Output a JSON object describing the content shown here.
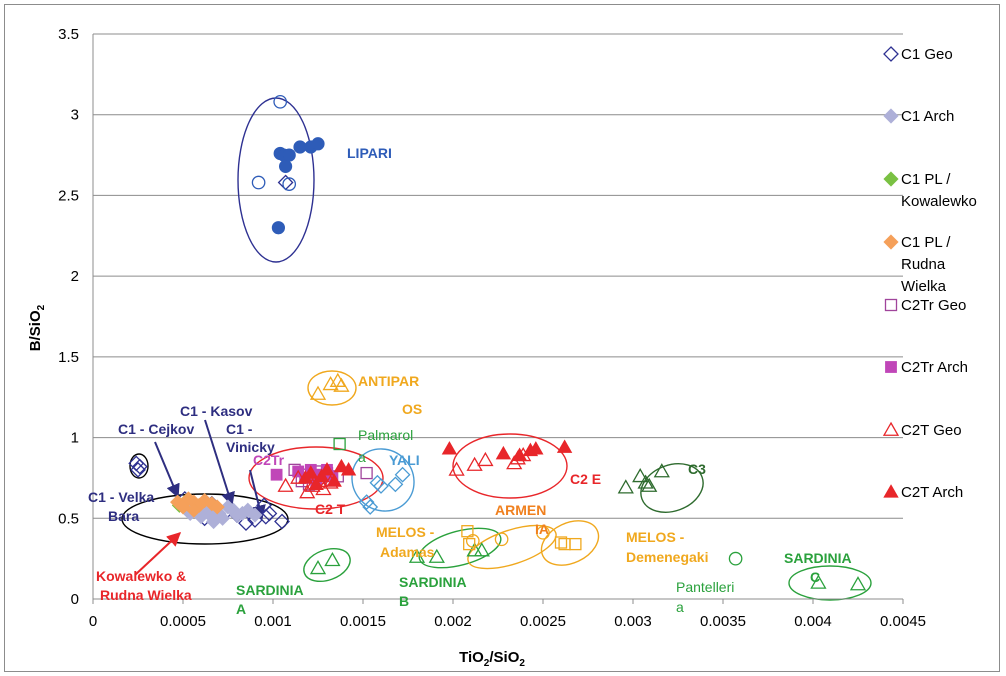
{
  "chart_data": {
    "type": "scatter",
    "xlabel": "TiO2/SiO2",
    "ylabel": "B/SiO2",
    "xlim": [
      0,
      0.0045
    ],
    "ylim": [
      0,
      3.5
    ],
    "x_ticks": [
      "0",
      "0.0005",
      "0.001",
      "0.0015",
      "0.002",
      "0.0025",
      "0.003",
      "0.0035",
      "0.004",
      "0.0045"
    ],
    "y_ticks": [
      "0",
      "0.5",
      "1",
      "1.5",
      "2",
      "2.5",
      "3",
      "3.5"
    ],
    "grid": "horizontal",
    "legend_position": "right",
    "series": [
      {
        "name": "C1 Geo",
        "marker": "diamond-open",
        "color": "#2e3192",
        "points": [
          [
            0.00024,
            0.84
          ],
          [
            0.00026,
            0.82
          ],
          [
            0.00025,
            0.8
          ],
          [
            0.00051,
            0.62
          ],
          [
            0.00058,
            0.56
          ],
          [
            0.00066,
            0.59
          ],
          [
            0.00073,
            0.53
          ],
          [
            0.0008,
            0.52
          ],
          [
            0.00085,
            0.47
          ],
          [
            0.0009,
            0.49
          ],
          [
            0.00096,
            0.51
          ],
          [
            0.00098,
            0.53
          ],
          [
            0.00105,
            0.48
          ],
          [
            0.00107,
            2.58
          ],
          [
            0.00095,
            0.58
          ],
          [
            0.00062,
            0.5
          ]
        ]
      },
      {
        "name": "C1 Arch",
        "marker": "diamond",
        "color": "#aeb0d8",
        "points": [
          [
            0.00052,
            0.58
          ],
          [
            0.00054,
            0.53
          ],
          [
            0.00057,
            0.55
          ],
          [
            0.0006,
            0.51
          ],
          [
            0.00062,
            0.57
          ],
          [
            0.00065,
            0.52
          ],
          [
            0.00068,
            0.56
          ],
          [
            0.0007,
            0.53
          ],
          [
            0.00072,
            0.5
          ],
          [
            0.00075,
            0.57
          ],
          [
            0.00078,
            0.55
          ],
          [
            0.0008,
            0.52
          ],
          [
            0.00083,
            0.53
          ],
          [
            0.00086,
            0.55
          ],
          [
            0.0009,
            0.52
          ],
          [
            0.00067,
            0.48
          ],
          [
            0.00063,
            0.6
          ]
        ]
      },
      {
        "name": "C1 PL / Kowalewko",
        "marker": "diamond",
        "color": "#7ac143",
        "points": [
          [
            0.00048,
            0.58
          ],
          [
            0.00052,
            0.61
          ]
        ]
      },
      {
        "name": "C1 PL / Rudna Wielka",
        "marker": "diamond",
        "color": "#f5a05a",
        "points": [
          [
            0.00047,
            0.6
          ],
          [
            0.0005,
            0.57
          ],
          [
            0.00053,
            0.62
          ],
          [
            0.00056,
            0.6
          ],
          [
            0.00059,
            0.58
          ],
          [
            0.00062,
            0.61
          ],
          [
            0.00066,
            0.59
          ],
          [
            0.00069,
            0.57
          ],
          [
            0.00056,
            0.55
          ]
        ]
      },
      {
        "name": "C2Tr Geo",
        "marker": "square-open",
        "color": "#a0449b",
        "points": [
          [
            0.00112,
            0.8
          ],
          [
            0.00116,
            0.73
          ],
          [
            0.00118,
            0.77
          ],
          [
            0.0012,
            0.71
          ],
          [
            0.00124,
            0.79
          ],
          [
            0.00126,
            0.75
          ],
          [
            0.0013,
            0.78
          ],
          [
            0.00132,
            0.74
          ],
          [
            0.00136,
            0.76
          ],
          [
            0.00152,
            0.78
          ]
        ]
      },
      {
        "name": "C2Tr Arch",
        "marker": "square",
        "color": "#c046b8",
        "points": [
          [
            0.00102,
            0.77
          ],
          [
            0.00114,
            0.79
          ],
          [
            0.00118,
            0.75
          ],
          [
            0.00121,
            0.8
          ],
          [
            0.00124,
            0.72
          ],
          [
            0.00127,
            0.77
          ],
          [
            0.0013,
            0.8
          ],
          [
            0.00133,
            0.76
          ]
        ]
      },
      {
        "name": "C2T Geo",
        "marker": "triangle-open",
        "color": "#e8262a",
        "points": [
          [
            0.00107,
            0.7
          ],
          [
            0.00114,
            0.75
          ],
          [
            0.00119,
            0.66
          ],
          [
            0.00122,
            0.7
          ],
          [
            0.00126,
            0.73
          ],
          [
            0.00128,
            0.68
          ],
          [
            0.00132,
            0.72
          ],
          [
            0.00202,
            0.8
          ],
          [
            0.00212,
            0.83
          ],
          [
            0.00218,
            0.86
          ],
          [
            0.00234,
            0.84
          ],
          [
            0.00236,
            0.87
          ],
          [
            0.00239,
            0.89
          ]
        ]
      },
      {
        "name": "C2T Arch",
        "marker": "triangle",
        "color": "#e8262a",
        "points": [
          [
            0.00118,
            0.75
          ],
          [
            0.00121,
            0.78
          ],
          [
            0.00124,
            0.71
          ],
          [
            0.00127,
            0.76
          ],
          [
            0.0013,
            0.8
          ],
          [
            0.00134,
            0.73
          ],
          [
            0.00138,
            0.82
          ],
          [
            0.00142,
            0.8
          ],
          [
            0.00198,
            0.93
          ],
          [
            0.00228,
            0.9
          ],
          [
            0.00237,
            0.89
          ],
          [
            0.00243,
            0.92
          ],
          [
            0.00246,
            0.93
          ],
          [
            0.00262,
            0.94
          ]
        ]
      },
      {
        "name": "",
        "marker": "circle",
        "color": "#2e5cb8",
        "points": [
          [
            0.00103,
            2.3
          ],
          [
            0.00104,
            2.76
          ],
          [
            0.00106,
            2.75
          ],
          [
            0.00107,
            2.68
          ],
          [
            0.00109,
            2.75
          ],
          [
            0.00115,
            2.8
          ],
          [
            0.00121,
            2.8
          ],
          [
            0.00125,
            2.82
          ]
        ]
      },
      {
        "name": "",
        "marker": "circle-open",
        "color": "#2e5cb8",
        "points": [
          [
            0.00104,
            3.08
          ],
          [
            0.00109,
            2.57
          ],
          [
            0.00092,
            2.58
          ]
        ]
      },
      {
        "name": "",
        "marker": "triangle-open",
        "color": "#f0a81e",
        "points": [
          [
            0.00125,
            1.27
          ],
          [
            0.00132,
            1.33
          ],
          [
            0.00136,
            1.35
          ],
          [
            0.00138,
            1.32
          ]
        ]
      },
      {
        "name": "",
        "marker": "square-open",
        "color": "#2aa13c",
        "points": [
          [
            0.00137,
            0.96
          ]
        ]
      },
      {
        "name": "",
        "marker": "diamond-open",
        "color": "#4a9bd4",
        "points": [
          [
            0.00152,
            0.6
          ],
          [
            0.00154,
            0.57
          ],
          [
            0.00158,
            0.72
          ],
          [
            0.0016,
            0.7
          ],
          [
            0.00168,
            0.71
          ],
          [
            0.00172,
            0.77
          ]
        ]
      },
      {
        "name": "",
        "marker": "triangle-open",
        "color": "#2aa13c",
        "points": [
          [
            0.00125,
            0.19
          ],
          [
            0.00133,
            0.24
          ],
          [
            0.0018,
            0.26
          ],
          [
            0.00191,
            0.26
          ],
          [
            0.00212,
            0.3
          ],
          [
            0.00216,
            0.3
          ],
          [
            0.00403,
            0.1
          ],
          [
            0.00425,
            0.09
          ]
        ]
      },
      {
        "name": "",
        "marker": "circle-open",
        "color": "#2aa13c",
        "points": [
          [
            0.00357,
            0.25
          ]
        ]
      },
      {
        "name": "",
        "marker": "square-open",
        "color": "#f0a81e",
        "points": [
          [
            0.00208,
            0.42
          ],
          [
            0.00209,
            0.34
          ],
          [
            0.0026,
            0.35
          ],
          [
            0.00262,
            0.34
          ],
          [
            0.00268,
            0.34
          ]
        ]
      },
      {
        "name": "",
        "marker": "circle-open",
        "color": "#f0a81e",
        "points": [
          [
            0.00211,
            0.36
          ],
          [
            0.00227,
            0.37
          ],
          [
            0.0025,
            0.41
          ]
        ]
      },
      {
        "name": "",
        "marker": "triangle-open",
        "color": "#2e6b2e",
        "points": [
          [
            0.00296,
            0.69
          ],
          [
            0.00304,
            0.76
          ],
          [
            0.00307,
            0.72
          ],
          [
            0.00309,
            0.7
          ],
          [
            0.00316,
            0.79
          ]
        ]
      }
    ],
    "annotations": [
      {
        "text": "LIPARI",
        "color": "#2e5cb8"
      },
      {
        "text": "ANTIPAR",
        "color": "#f0a81e"
      },
      {
        "text": "OS",
        "color": "#f0a81e"
      },
      {
        "text": "Palmarol",
        "color": "#2aa13c"
      },
      {
        "text": "a",
        "color": "#2aa13c"
      },
      {
        "text": "YALI",
        "color": "#4a9bd4"
      },
      {
        "text": "C2Tr",
        "color": "#c046b8"
      },
      {
        "text": "C2 T",
        "color": "#e8262a"
      },
      {
        "text": "C2 E",
        "color": "#e8262a"
      },
      {
        "text": "C3",
        "color": "#2e6b2e"
      },
      {
        "text": "ARMEN",
        "color": "#f0801e"
      },
      {
        "text": "IA",
        "color": "#f0801e"
      },
      {
        "text": "MELOS -",
        "color": "#f0a81e"
      },
      {
        "text": "Adamas",
        "color": "#f0a81e"
      },
      {
        "text": "MELOS -",
        "color": "#f0a81e"
      },
      {
        "text": "Demenegaki",
        "color": "#f0a81e"
      },
      {
        "text": "SARDINIA",
        "color": "#2aa13c"
      },
      {
        "text": "A",
        "color": "#2aa13c"
      },
      {
        "text": "SARDINIA",
        "color": "#2aa13c"
      },
      {
        "text": "B",
        "color": "#2aa13c"
      },
      {
        "text": "SARDINIA",
        "color": "#2aa13c"
      },
      {
        "text": "C",
        "color": "#2aa13c"
      },
      {
        "text": "Pantelleri",
        "color": "#2aa13c"
      },
      {
        "text": "a",
        "color": "#2aa13c"
      },
      {
        "text": "C1 - Kasov",
        "color": "#2e2e80"
      },
      {
        "text": "C1 - Cejkov",
        "color": "#2e2e80"
      },
      {
        "text": "C1 -",
        "color": "#2e2e80"
      },
      {
        "text": "Vinicky",
        "color": "#2e2e80"
      },
      {
        "text": "C1 - Velka",
        "color": "#2e2e80"
      },
      {
        "text": "Bara",
        "color": "#2e2e80"
      },
      {
        "text": "Kowalewko &",
        "color": "#e8262a"
      },
      {
        "text": "Rudna Wielka",
        "color": "#e8262a"
      }
    ],
    "legend": [
      {
        "label": "C1 Geo",
        "marker": "diamond-open",
        "color": "#2e3192"
      },
      {
        "label": "C1 Arch",
        "marker": "diamond",
        "color": "#aeb0d8"
      },
      {
        "label": "C1 PL /",
        "label2": "Kowalewko",
        "marker": "diamond",
        "color": "#7ac143"
      },
      {
        "label": "C1 PL /",
        "label2": "Rudna",
        "label3": "Wielka",
        "marker": "diamond",
        "color": "#f5a05a"
      },
      {
        "label": "C2Tr Geo",
        "marker": "square-open",
        "color": "#a0449b"
      },
      {
        "label": "C2Tr Arch",
        "marker": "square",
        "color": "#c046b8"
      },
      {
        "label": "C2T Geo",
        "marker": "triangle-open",
        "color": "#e8262a"
      },
      {
        "label": "C2T Arch",
        "marker": "triangle",
        "color": "#e8262a"
      }
    ]
  }
}
